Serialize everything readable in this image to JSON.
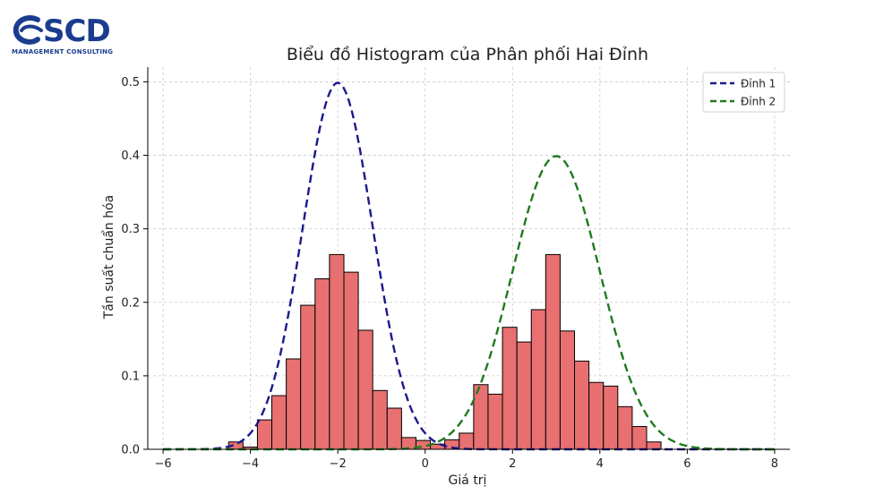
{
  "logo": {
    "name": "SCD",
    "subtitle": "MANAGEMENT CONSULTING"
  },
  "chart_data": {
    "type": "bar",
    "title": "Biểu đồ Histogram của Phân phối Hai Đỉnh",
    "xlabel": "Giá trị",
    "ylabel": "Tần suất chuẩn hóa",
    "xlim": [
      -6.35,
      8.35
    ],
    "ylim": [
      0,
      0.52
    ],
    "xticks": [
      -6,
      -4,
      -2,
      0,
      2,
      4,
      6,
      8
    ],
    "yticks": [
      0.0,
      0.1,
      0.2,
      0.3,
      0.4,
      0.5
    ],
    "grid": true,
    "bar_color": "#e87070",
    "bar_edge": "#000000",
    "histogram": {
      "bin_width": 0.33,
      "bins": [
        {
          "x0": -4.5,
          "value": 0.01
        },
        {
          "x0": -4.17,
          "value": 0.003
        },
        {
          "x0": -3.84,
          "value": 0.04
        },
        {
          "x0": -3.51,
          "value": 0.073
        },
        {
          "x0": -3.18,
          "value": 0.123
        },
        {
          "x0": -2.85,
          "value": 0.196
        },
        {
          "x0": -2.52,
          "value": 0.232
        },
        {
          "x0": -2.19,
          "value": 0.265
        },
        {
          "x0": -1.86,
          "value": 0.241
        },
        {
          "x0": -1.53,
          "value": 0.162
        },
        {
          "x0": -1.2,
          "value": 0.08
        },
        {
          "x0": -0.87,
          "value": 0.056
        },
        {
          "x0": -0.54,
          "value": 0.016
        },
        {
          "x0": -0.21,
          "value": 0.012
        },
        {
          "x0": 0.12,
          "value": 0.007
        },
        {
          "x0": 0.45,
          "value": 0.013
        },
        {
          "x0": 0.78,
          "value": 0.022
        },
        {
          "x0": 1.11,
          "value": 0.088
        },
        {
          "x0": 1.44,
          "value": 0.075
        },
        {
          "x0": 1.77,
          "value": 0.166
        },
        {
          "x0": 2.1,
          "value": 0.146
        },
        {
          "x0": 2.43,
          "value": 0.19
        },
        {
          "x0": 2.76,
          "value": 0.265
        },
        {
          "x0": 3.09,
          "value": 0.161
        },
        {
          "x0": 3.42,
          "value": 0.12
        },
        {
          "x0": 3.75,
          "value": 0.091
        },
        {
          "x0": 4.08,
          "value": 0.086
        },
        {
          "x0": 4.41,
          "value": 0.058
        },
        {
          "x0": 4.74,
          "value": 0.031
        },
        {
          "x0": 5.07,
          "value": 0.01
        }
      ]
    },
    "series": [
      {
        "name": "Đỉnh 1",
        "type": "line",
        "style": "dashed",
        "color": "#1a1a8c",
        "distribution": {
          "mean": -2,
          "sd": 0.8
        },
        "x_range": [
          -6,
          8
        ]
      },
      {
        "name": "Đỉnh 2",
        "type": "line",
        "style": "dashed",
        "color": "#1f7a1f",
        "distribution": {
          "mean": 3,
          "sd": 1
        },
        "x_range": [
          -6,
          8
        ]
      }
    ],
    "legend": {
      "position": "top-right"
    }
  }
}
